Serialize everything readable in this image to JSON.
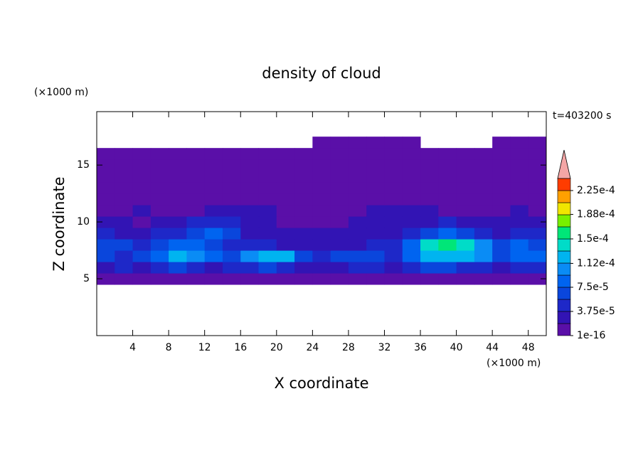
{
  "chart_data": {
    "type": "contour",
    "title": "density of cloud",
    "x_label": "X coordinate",
    "y_label": "Z coordinate",
    "x_unit": "(×1000 m)",
    "y_unit": "(×1000 m)",
    "annotation": "t=403200 s",
    "xlim": [
      0,
      50
    ],
    "xticks": [
      4,
      8,
      12,
      16,
      20,
      24,
      28,
      32,
      36,
      40,
      44,
      48
    ],
    "ylim": [
      0,
      19.7
    ],
    "yticks": [
      5,
      10,
      15
    ],
    "x": [
      1,
      3,
      5,
      7,
      9,
      11,
      13,
      15,
      17,
      19,
      21,
      23,
      25,
      27,
      29,
      31,
      33,
      35,
      37,
      39,
      41,
      43,
      45,
      47,
      49
    ],
    "z": [
      5,
      6,
      7,
      8,
      9,
      10,
      11,
      12,
      13,
      14,
      15,
      16,
      17
    ],
    "values": [
      [
        1e-05,
        1e-05,
        1e-05,
        1e-05,
        1e-05,
        1e-05,
        1e-05,
        1e-05,
        1e-05,
        1e-05,
        1e-05,
        1e-05,
        1e-05,
        1e-05,
        1e-05,
        1e-05,
        1e-05,
        1e-05,
        1e-05,
        1e-05,
        1e-05,
        1e-05,
        1e-05,
        1e-05,
        1e-05
      ],
      [
        3e-05,
        5e-05,
        3e-05,
        5e-05,
        6e-05,
        5e-05,
        3e-05,
        5e-05,
        5e-05,
        6e-05,
        5e-05,
        3e-05,
        3e-05,
        3e-05,
        5e-05,
        5e-05,
        3e-05,
        5e-05,
        6e-05,
        6e-05,
        5e-05,
        5e-05,
        3e-05,
        5e-05,
        5e-05
      ],
      [
        6e-05,
        5e-05,
        6e-05,
        8e-05,
        0.00012,
        0.0001,
        8e-05,
        6e-05,
        0.0001,
        0.00012,
        0.00012,
        6e-05,
        5e-05,
        6e-05,
        6e-05,
        6e-05,
        5e-05,
        8e-05,
        0.00012,
        0.00012,
        0.00012,
        0.0001,
        6e-05,
        8e-05,
        8e-05
      ],
      [
        6e-05,
        6e-05,
        5e-05,
        6e-05,
        8e-05,
        8e-05,
        6e-05,
        5e-05,
        5e-05,
        5e-05,
        3e-05,
        3e-05,
        3e-05,
        3e-05,
        3e-05,
        5e-05,
        5e-05,
        8e-05,
        0.00014,
        0.00016,
        0.00014,
        0.0001,
        6e-05,
        8e-05,
        6e-05
      ],
      [
        5e-05,
        3e-05,
        3e-05,
        5e-05,
        5e-05,
        6e-05,
        8e-05,
        6e-05,
        3e-05,
        3e-05,
        3e-05,
        3e-05,
        3e-05,
        3e-05,
        3e-05,
        3e-05,
        3e-05,
        5e-05,
        6e-05,
        8e-05,
        6e-05,
        5e-05,
        3e-05,
        5e-05,
        5e-05
      ],
      [
        3e-05,
        3e-05,
        1e-05,
        3e-05,
        3e-05,
        5e-05,
        5e-05,
        5e-05,
        3e-05,
        3e-05,
        1e-05,
        1e-05,
        1e-05,
        1e-05,
        3e-05,
        3e-05,
        3e-05,
        3e-05,
        3e-05,
        5e-05,
        3e-05,
        3e-05,
        3e-05,
        3e-05,
        3e-05
      ],
      [
        1e-05,
        1e-05,
        3e-05,
        1e-05,
        1e-05,
        1e-05,
        3e-05,
        3e-05,
        3e-05,
        3e-05,
        1e-05,
        1e-05,
        1e-05,
        1e-05,
        1e-05,
        3e-05,
        3e-05,
        3e-05,
        3e-05,
        1e-05,
        1e-05,
        1e-05,
        1e-05,
        3e-05,
        1e-05
      ],
      [
        1e-05,
        1e-05,
        1e-05,
        1e-05,
        1e-05,
        1e-05,
        1e-05,
        1e-05,
        1e-05,
        1e-05,
        1e-05,
        1e-05,
        1e-05,
        1e-05,
        1e-05,
        1e-05,
        1e-05,
        1e-05,
        1e-05,
        1e-05,
        1e-05,
        1e-05,
        1e-05,
        1e-05,
        1e-05
      ],
      [
        1e-05,
        1e-05,
        1e-05,
        1e-05,
        1e-05,
        1e-05,
        1e-05,
        1e-05,
        1e-05,
        1e-05,
        1e-05,
        1e-05,
        1e-05,
        1e-05,
        1e-05,
        1e-05,
        1e-05,
        1e-05,
        1e-05,
        1e-05,
        1e-05,
        1e-05,
        1e-05,
        1e-05,
        1e-05
      ],
      [
        1e-05,
        1e-05,
        1e-05,
        1e-05,
        1e-05,
        1e-05,
        1e-05,
        1e-05,
        1e-05,
        1e-05,
        1e-05,
        1e-05,
        1e-05,
        1e-05,
        1e-05,
        1e-05,
        1e-05,
        1e-05,
        1e-05,
        1e-05,
        1e-05,
        1e-05,
        1e-05,
        1e-05,
        1e-05
      ],
      [
        1e-05,
        1e-05,
        1e-05,
        1e-05,
        1e-05,
        1e-05,
        1e-05,
        1e-05,
        1e-05,
        1e-05,
        1e-05,
        1e-05,
        1e-05,
        1e-05,
        1e-05,
        1e-05,
        1e-05,
        1e-05,
        1e-05,
        1e-05,
        1e-05,
        1e-05,
        1e-05,
        1e-05,
        1e-05
      ],
      [
        1e-05,
        1e-05,
        1e-05,
        1e-05,
        1e-05,
        1e-05,
        1e-05,
        1e-05,
        1e-05,
        1e-05,
        1e-05,
        1e-05,
        1e-05,
        1e-05,
        1e-05,
        1e-05,
        1e-05,
        1e-05,
        1e-05,
        1e-05,
        1e-05,
        1e-05,
        1e-05,
        1e-05,
        1e-05
      ],
      [
        0,
        0,
        0,
        0,
        0,
        0,
        0,
        0,
        0,
        0,
        0,
        0,
        1e-05,
        1e-05,
        1e-05,
        1e-05,
        1e-05,
        1e-05,
        0,
        0,
        0,
        0,
        1e-05,
        1e-05,
        1e-05
      ]
    ],
    "colorbar": {
      "boundaries": [
        1e-16,
        1.875e-05,
        3.75e-05,
        5.625e-05,
        7.5e-05,
        9.375e-05,
        0.0001125,
        0.00013125,
        0.00015,
        0.00016875,
        0.0001875,
        0.00020625,
        0.000225,
        0.00024375
      ],
      "colors": [
        "#5a0fa8",
        "#3214b4",
        "#1e28c8",
        "#0a46dc",
        "#0064f0",
        "#0a8cf5",
        "#00b4f0",
        "#00dcc8",
        "#00e678",
        "#78f000",
        "#f0e600",
        "#ffa000",
        "#ff3c00"
      ],
      "extend_color": "#f4a6a6",
      "ticks": [
        1e-16,
        {
          "value": 3.75e-05,
          "label": "3.75e-5"
        },
        {
          "value": 7.5e-05,
          "label": "7.5e-5"
        },
        {
          "value": 0.000112,
          "label": "1.12e-4"
        },
        {
          "value": 0.00015,
          "label": "1.5e-4"
        },
        {
          "value": 0.000188,
          "label": "1.88e-4"
        },
        {
          "value": 0.000225,
          "label": "2.25e-4"
        }
      ]
    }
  }
}
